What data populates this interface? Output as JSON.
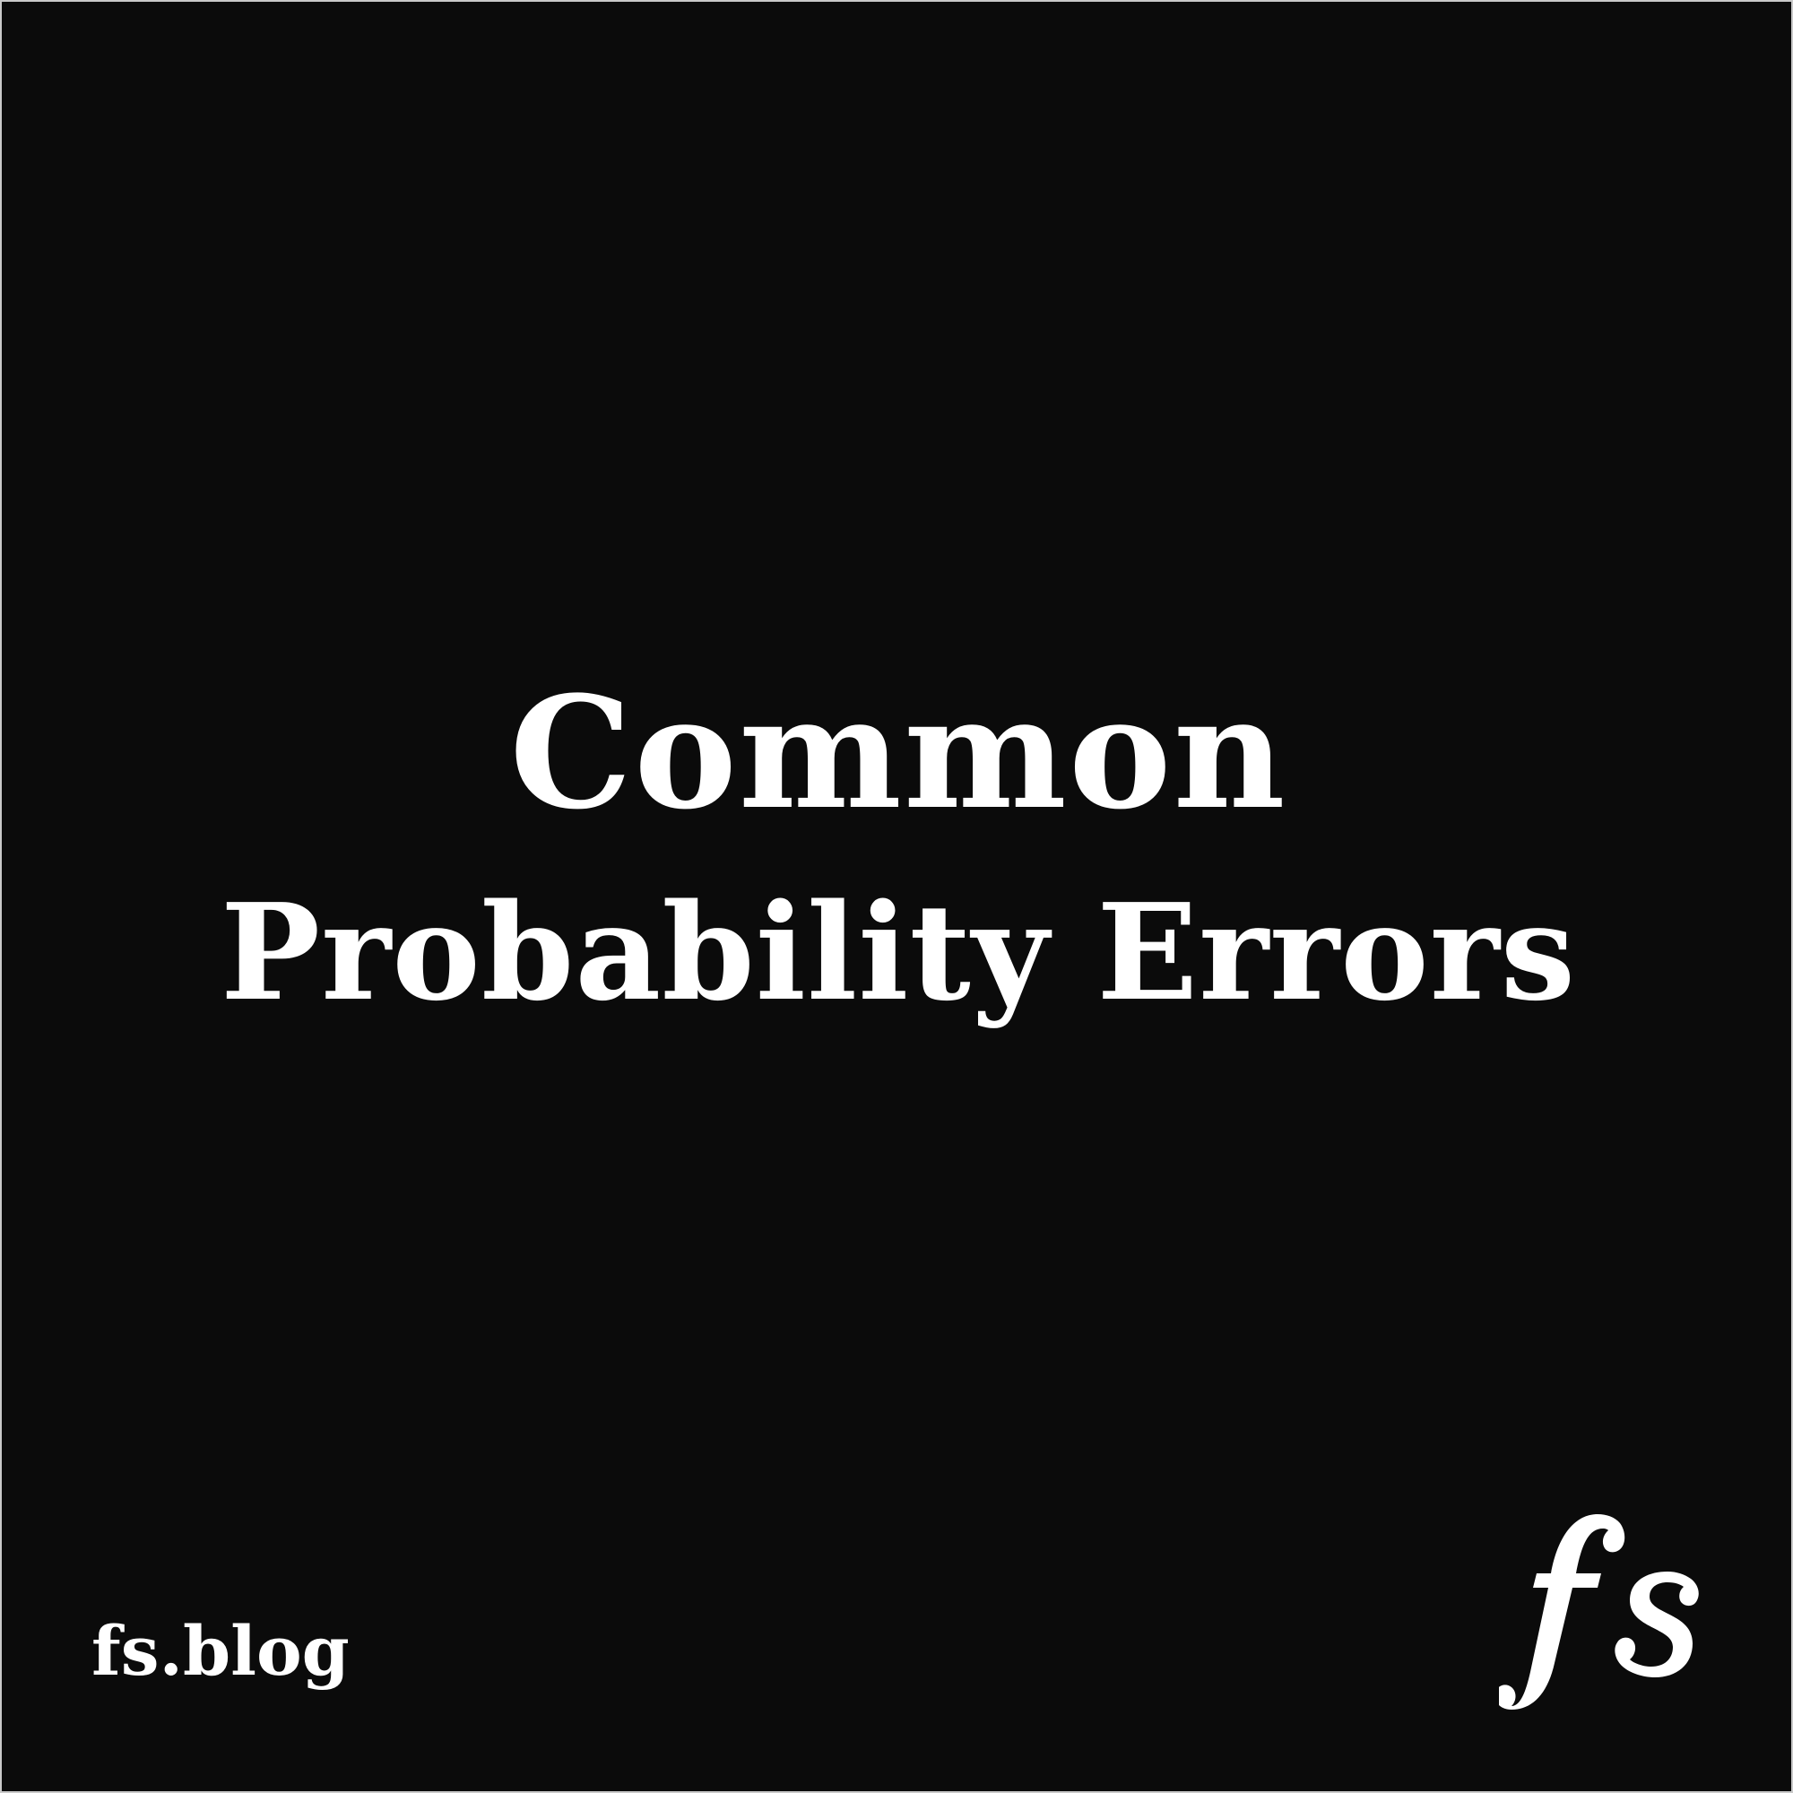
{
  "colors": {
    "background": "#0b0b0b",
    "text": "#ffffff",
    "border": "#c9c9c9"
  },
  "title": {
    "line1": "Common",
    "line2": "Probability Errors"
  },
  "footer": {
    "url": "fs.blog"
  },
  "logo": {
    "text": "fs",
    "icon": "fs-logo-icon"
  }
}
